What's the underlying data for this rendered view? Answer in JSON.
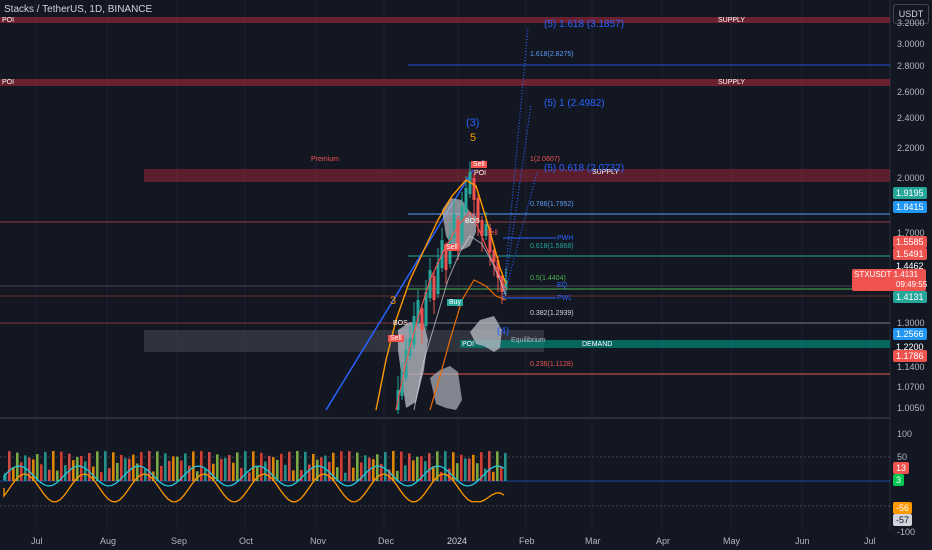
{
  "header": {
    "title": "Stacks / TetherUS, 1D, BINANCE",
    "currency_button": "USDT"
  },
  "price_axis": {
    "labels": [
      "3.2000",
      "3.0000",
      "2.8000",
      "2.6000",
      "2.4000",
      "2.2000",
      "2.0000",
      "1.7000",
      "1.3000",
      "1.1400",
      "1.0700",
      "1.0050"
    ]
  },
  "price_tags": [
    {
      "value": "1.9195",
      "color": "#26a69a"
    },
    {
      "value": "1.8415",
      "color": "#2196f3"
    },
    {
      "value": "1.5585",
      "color": "#ef5350"
    },
    {
      "value": "1.5491",
      "color": "#ef5350"
    },
    {
      "value": "1.4462",
      "color": "#131722"
    },
    {
      "value": "1.4131",
      "color": "#26a69a"
    },
    {
      "value": "1.2566",
      "color": "#2196f3"
    },
    {
      "value": "1.2200",
      "color": "#131722"
    },
    {
      "value": "1.1786",
      "color": "#ef5350"
    }
  ],
  "symbol_tag": {
    "name": "STXUSDT",
    "price": "1.4131",
    "countdown": "09:49:55"
  },
  "time_axis": [
    "Jul",
    "Aug",
    "Sep",
    "Oct",
    "Nov",
    "Dec",
    "2024",
    "Feb",
    "Mar",
    "Apr",
    "May",
    "Jun",
    "Jul"
  ],
  "oscillator": {
    "labels": [
      "100",
      "50",
      "13",
      "3",
      "-56",
      "-57",
      "-100"
    ]
  },
  "zones": {
    "supply": "SUPPLY",
    "poi": "POI",
    "demand": "DEMAND",
    "premium": "Premium",
    "equilibrium": "Equilibrium"
  },
  "fib": {
    "ext1618": "(5) 1.618 (3.1857)",
    "ext1618b": "1.618(2.8275)",
    "ext1": "(5) 1 (2.4982)",
    "ext0618": "(5) 0.618 (2.0732)",
    "r1": "1(2.0607)",
    "r786": "0.786(1.7952)",
    "r618": "0.618(1.5868)",
    "r5": "0.5(1.4404)",
    "r382": "0.382(1.2939)",
    "r236": "0.236(1.1128)"
  },
  "wave_labels": {
    "w3": "(3)",
    "w5": "5",
    "w3b": "3",
    "w4": "(4)"
  },
  "signals": {
    "sell": "Sell",
    "buy": "Buy",
    "bos": "BOS",
    "pwh": "PWH",
    "pwl": "PWL",
    "eq": "EQ"
  },
  "colors": {
    "bg": "#131722",
    "red": "#ef5350",
    "green": "#26a69a",
    "blue": "#2196f3",
    "orange": "#ff9800",
    "teal": "#00bcd4"
  }
}
